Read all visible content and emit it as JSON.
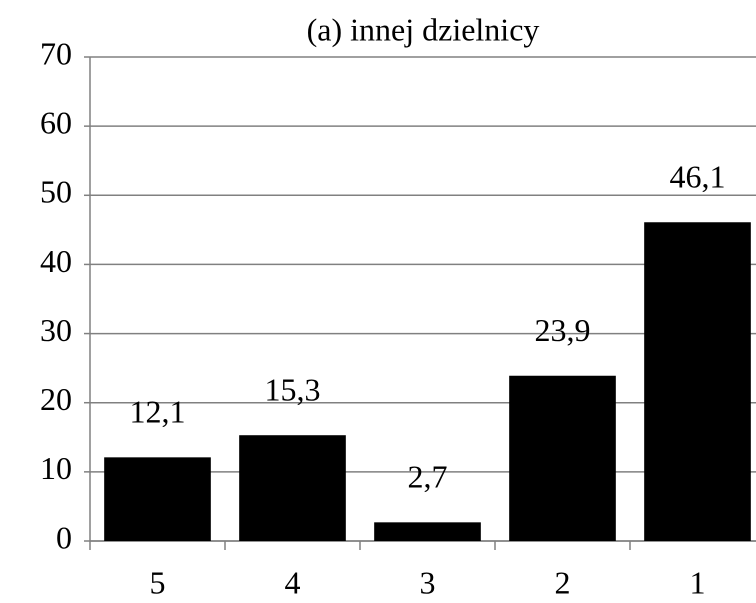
{
  "chart_data": {
    "type": "bar",
    "title": "(a) innej dzielnicy",
    "categories": [
      "5",
      "4",
      "3",
      "2",
      "1"
    ],
    "values": [
      12.1,
      15.3,
      2.7,
      23.9,
      46.1
    ],
    "value_labels": [
      "12,1",
      "15,3",
      "2,7",
      "23,9",
      "46,1"
    ],
    "color": "#000000",
    "ylim": [
      0,
      70
    ],
    "yticks": [
      0,
      10,
      20,
      30,
      40,
      50,
      60,
      70
    ],
    "grid": true
  }
}
